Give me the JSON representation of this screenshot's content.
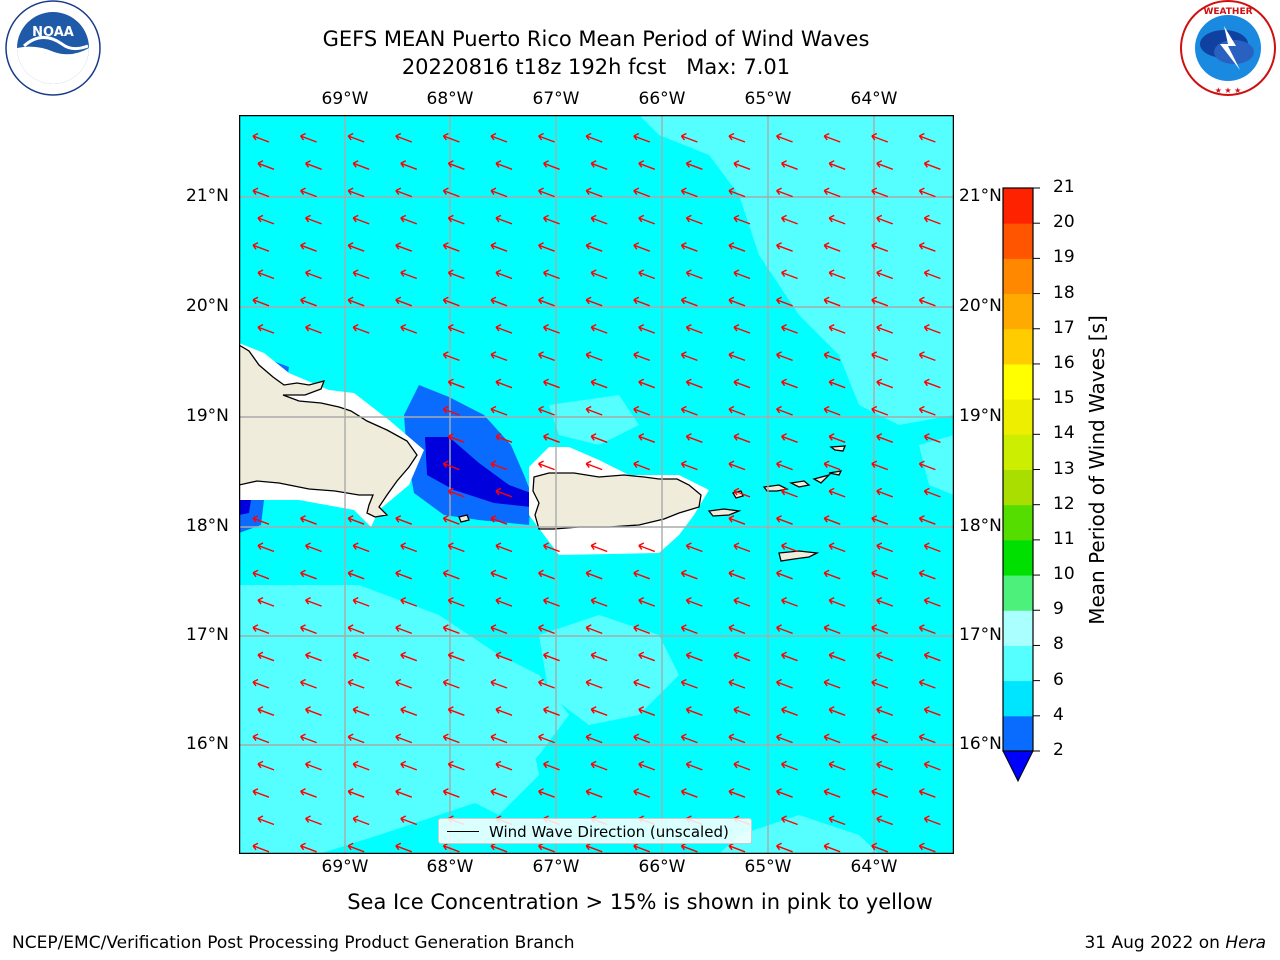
{
  "header": {
    "title": "GEFS MEAN Puerto Rico Mean Period of Wind Waves",
    "subtitle": "20220816 t18z 192h fcst   Max: 7.01",
    "left_logo_text": "NOAA",
    "left_logo_ring_text": "NATIONAL OCEANIC AND ATMOSPHERIC ADMINISTRATION · U.S. DEPARTMENT OF COMMERCE",
    "right_logo_ring_text": "NATIONAL WEATHER SERVICE"
  },
  "map": {
    "lon_labels": [
      "69°W",
      "68°W",
      "67°W",
      "66°W",
      "65°W",
      "64°W"
    ],
    "lat_labels": [
      "21°N",
      "20°N",
      "19°N",
      "18°N",
      "17°N",
      "16°N"
    ],
    "legend_label": "Wind Wave Direction (unscaled)",
    "ocean_color": "#00ffff",
    "light_cyan": "#55ffff",
    "arrow_color": "#ff0000",
    "land_color": "#efecdc"
  },
  "colorbar": {
    "title": "Mean Period of Wind Waves [s]",
    "ticks": [
      "2",
      "4",
      "6",
      "8",
      "9",
      "10",
      "11",
      "12",
      "13",
      "14",
      "15",
      "16",
      "17",
      "18",
      "19",
      "20",
      "21"
    ],
    "colors": [
      "#0a6cff",
      "#00e5ff",
      "#55ffff",
      "#aaffff",
      "#4df07a",
      "#00e000",
      "#55dd00",
      "#aadd00",
      "#ccee00",
      "#eeee00",
      "#ffff00",
      "#ffcc00",
      "#ffaa00",
      "#ff8800",
      "#ff5500",
      "#ff2200"
    ],
    "under_color": "#0000ff",
    "over_color": "#ff0000"
  },
  "footer": {
    "note": "Sea Ice Concentration > 15% is shown in pink to yellow",
    "left": "NCEP/EMC/Verification Post Processing Product Generation Branch",
    "right_date": "31 Aug 2022 on ",
    "right_host": "Hera"
  }
}
